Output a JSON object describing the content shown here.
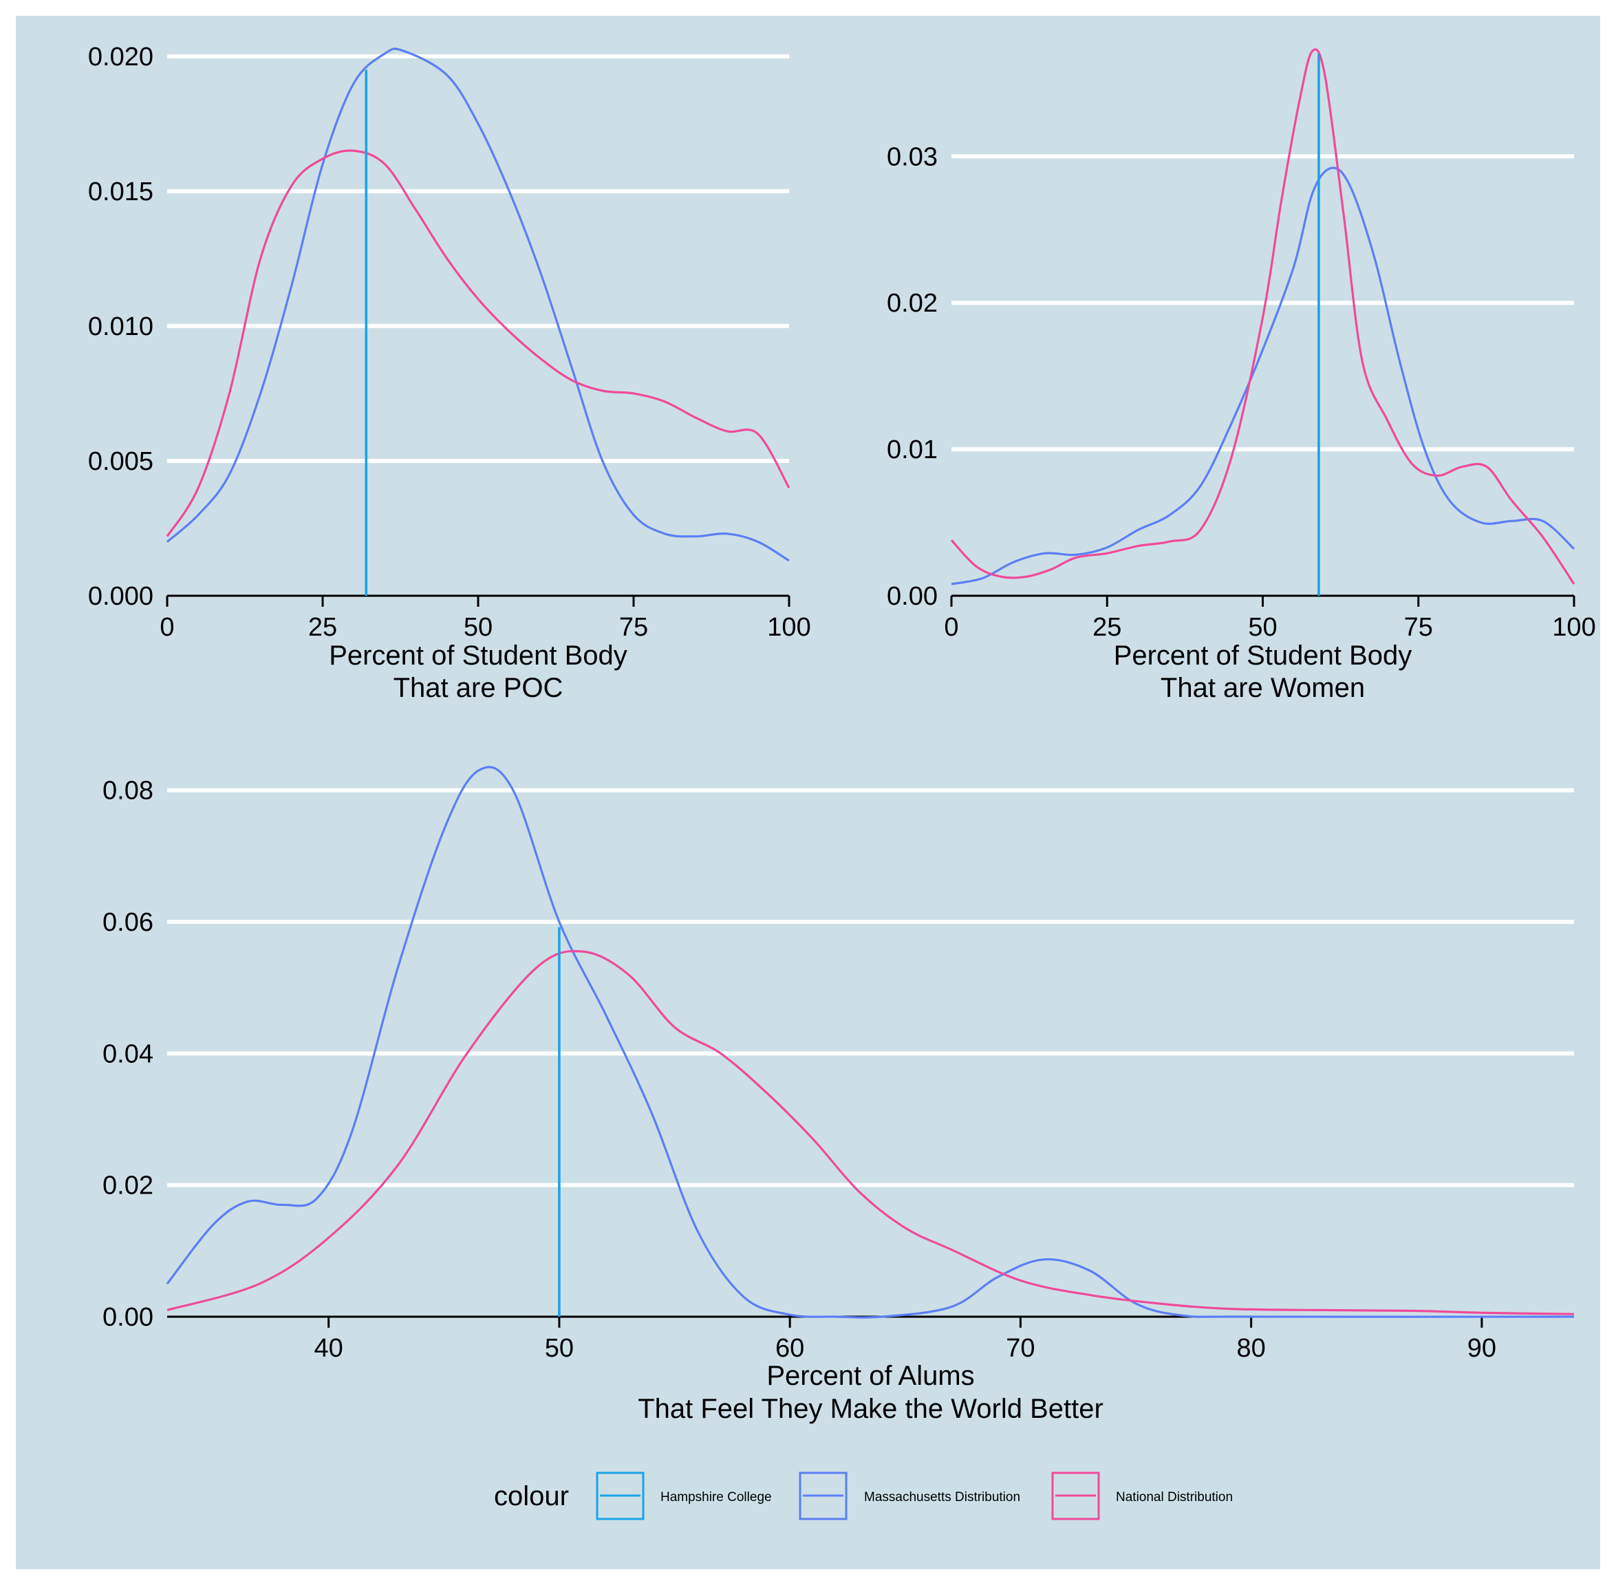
{
  "figure": {
    "background": "#cddfe6",
    "grid_color": "#ffffff",
    "axis_color": "#000000",
    "text_color": "#000000"
  },
  "chart_data": [
    {
      "type": "line",
      "title": "",
      "xlabel_lines": [
        "Percent of Student Body",
        "That are POC"
      ],
      "ylabel": "",
      "xlim": [
        0,
        100
      ],
      "ylim": [
        0,
        0.0202
      ],
      "x_ticks": [
        0,
        25,
        50,
        75,
        100
      ],
      "x_tick_labels": [
        "0",
        "25",
        "50",
        "75",
        "100"
      ],
      "y_ticks": [
        0,
        0.005,
        0.01,
        0.015,
        0.02
      ],
      "y_tick_labels": [
        "0.000",
        "0.005",
        "0.010",
        "0.015",
        "0.020"
      ],
      "grid": "horizontal-major",
      "series": [
        {
          "name": "Massachusetts Distribution",
          "color": "#5a7ff5",
          "points": [
            [
              0,
              0.002
            ],
            [
              5,
              0.003
            ],
            [
              10,
              0.0045
            ],
            [
              15,
              0.0075
            ],
            [
              20,
              0.0115
            ],
            [
              25,
              0.016
            ],
            [
              30,
              0.019
            ],
            [
              35,
              0.0201
            ],
            [
              38,
              0.0202
            ],
            [
              45,
              0.0193
            ],
            [
              50,
              0.0175
            ],
            [
              55,
              0.015
            ],
            [
              60,
              0.012
            ],
            [
              65,
              0.0085
            ],
            [
              70,
              0.005
            ],
            [
              75,
              0.003
            ],
            [
              80,
              0.0023
            ],
            [
              85,
              0.0022
            ],
            [
              90,
              0.0023
            ],
            [
              95,
              0.002
            ],
            [
              100,
              0.0013
            ]
          ]
        },
        {
          "name": "National Distribution",
          "color": "#ef4a9a",
          "points": [
            [
              0,
              0.0022
            ],
            [
              5,
              0.004
            ],
            [
              10,
              0.0075
            ],
            [
              15,
              0.0125
            ],
            [
              20,
              0.0152
            ],
            [
              25,
              0.0162
            ],
            [
              30,
              0.0165
            ],
            [
              35,
              0.016
            ],
            [
              40,
              0.0143
            ],
            [
              45,
              0.0125
            ],
            [
              50,
              0.011
            ],
            [
              55,
              0.0098
            ],
            [
              60,
              0.0088
            ],
            [
              65,
              0.008
            ],
            [
              70,
              0.0076
            ],
            [
              75,
              0.0075
            ],
            [
              80,
              0.0072
            ],
            [
              85,
              0.0066
            ],
            [
              90,
              0.0061
            ],
            [
              95,
              0.006
            ],
            [
              100,
              0.004
            ]
          ]
        }
      ],
      "vline": {
        "name": "Hampshire College",
        "color": "#1ca3e6",
        "x": 32,
        "y_top": 0.0195
      }
    },
    {
      "type": "line",
      "title": "",
      "xlabel_lines": [
        "Percent of Student Body",
        "That are Women"
      ],
      "ylabel": "",
      "xlim": [
        0,
        100
      ],
      "ylim": [
        0,
        0.0372
      ],
      "x_ticks": [
        0,
        25,
        50,
        75,
        100
      ],
      "x_tick_labels": [
        "0",
        "25",
        "50",
        "75",
        "100"
      ],
      "y_ticks": [
        0,
        0.01,
        0.02,
        0.03
      ],
      "y_tick_labels": [
        "0.00",
        "0.01",
        "0.02",
        "0.03"
      ],
      "grid": "horizontal-major",
      "series": [
        {
          "name": "Massachusetts Distribution",
          "color": "#5a7ff5",
          "points": [
            [
              0,
              0.0008
            ],
            [
              5,
              0.0012
            ],
            [
              10,
              0.0023
            ],
            [
              15,
              0.0029
            ],
            [
              20,
              0.0028
            ],
            [
              25,
              0.0033
            ],
            [
              30,
              0.0045
            ],
            [
              35,
              0.0055
            ],
            [
              40,
              0.0075
            ],
            [
              45,
              0.0118
            ],
            [
              50,
              0.0168
            ],
            [
              55,
              0.0225
            ],
            [
              58,
              0.0275
            ],
            [
              61,
              0.0292
            ],
            [
              64,
              0.028
            ],
            [
              68,
              0.023
            ],
            [
              72,
              0.016
            ],
            [
              76,
              0.01
            ],
            [
              80,
              0.0065
            ],
            [
              85,
              0.005
            ],
            [
              90,
              0.0051
            ],
            [
              95,
              0.0051
            ],
            [
              100,
              0.0032
            ]
          ]
        },
        {
          "name": "National Distribution",
          "color": "#ef4a9a",
          "points": [
            [
              0,
              0.0038
            ],
            [
              4,
              0.002
            ],
            [
              8,
              0.0013
            ],
            [
              12,
              0.0013
            ],
            [
              16,
              0.0018
            ],
            [
              20,
              0.0026
            ],
            [
              25,
              0.0029
            ],
            [
              30,
              0.0034
            ],
            [
              35,
              0.0037
            ],
            [
              40,
              0.0045
            ],
            [
              45,
              0.0095
            ],
            [
              50,
              0.019
            ],
            [
              53,
              0.027
            ],
            [
              56,
              0.034
            ],
            [
              58,
              0.0372
            ],
            [
              60,
              0.0355
            ],
            [
              63,
              0.026
            ],
            [
              66,
              0.016
            ],
            [
              70,
              0.012
            ],
            [
              74,
              0.009
            ],
            [
              78,
              0.0082
            ],
            [
              82,
              0.0088
            ],
            [
              86,
              0.0088
            ],
            [
              90,
              0.0065
            ],
            [
              95,
              0.004
            ],
            [
              100,
              0.0008
            ]
          ]
        }
      ],
      "vline": {
        "name": "Hampshire College",
        "color": "#1ca3e6",
        "x": 59,
        "y_top": 0.037
      }
    },
    {
      "type": "line",
      "title": "",
      "xlabel_lines": [
        "Percent of Alums",
        "That Feel They Make the World Better"
      ],
      "ylabel": "",
      "xlim": [
        33,
        94
      ],
      "ylim": [
        0,
        0.083
      ],
      "x_ticks": [
        40,
        50,
        60,
        70,
        80,
        90
      ],
      "x_tick_labels": [
        "40",
        "50",
        "60",
        "70",
        "80",
        "90"
      ],
      "y_ticks": [
        0,
        0.02,
        0.04,
        0.06,
        0.08
      ],
      "y_tick_labels": [
        "0.00",
        "0.02",
        "0.04",
        "0.06",
        "0.08"
      ],
      "grid": "horizontal-major",
      "series": [
        {
          "name": "Massachusetts Distribution",
          "color": "#5a7ff5",
          "points": [
            [
              33,
              0.005
            ],
            [
              35,
              0.014
            ],
            [
              36.5,
              0.0175
            ],
            [
              38,
              0.017
            ],
            [
              39.5,
              0.018
            ],
            [
              41,
              0.028
            ],
            [
              43,
              0.053
            ],
            [
              45,
              0.074
            ],
            [
              46.5,
              0.083
            ],
            [
              48,
              0.08
            ],
            [
              50,
              0.06
            ],
            [
              52,
              0.046
            ],
            [
              54,
              0.031
            ],
            [
              56,
              0.013
            ],
            [
              58,
              0.003
            ],
            [
              60,
              0.0003
            ],
            [
              62,
              0.0
            ],
            [
              64,
              0.0
            ],
            [
              67,
              0.0015
            ],
            [
              69,
              0.006
            ],
            [
              71,
              0.0087
            ],
            [
              73,
              0.007
            ],
            [
              75,
              0.002
            ],
            [
              77,
              0.0002
            ],
            [
              80,
              0.0
            ],
            [
              94,
              0.0
            ]
          ]
        },
        {
          "name": "National Distribution",
          "color": "#ef4a9a",
          "points": [
            [
              33,
              0.001
            ],
            [
              37,
              0.005
            ],
            [
              40,
              0.012
            ],
            [
              43,
              0.023
            ],
            [
              46,
              0.04
            ],
            [
              49,
              0.053
            ],
            [
              51,
              0.0555
            ],
            [
              53,
              0.052
            ],
            [
              55,
              0.044
            ],
            [
              57,
              0.04
            ],
            [
              59,
              0.034
            ],
            [
              61,
              0.027
            ],
            [
              63,
              0.019
            ],
            [
              65,
              0.0135
            ],
            [
              67,
              0.0102
            ],
            [
              70,
              0.0055
            ],
            [
              73,
              0.0033
            ],
            [
              76,
              0.002
            ],
            [
              79,
              0.0012
            ],
            [
              83,
              0.001
            ],
            [
              87,
              0.0009
            ],
            [
              90,
              0.0006
            ],
            [
              94,
              0.0004
            ]
          ]
        }
      ],
      "vline": {
        "name": "Hampshire College",
        "color": "#1ca3e6",
        "x": 50,
        "y_top": 0.0592
      }
    }
  ],
  "legend": {
    "title": "colour",
    "position": "bottom",
    "items": [
      {
        "label": "Hampshire College",
        "color": "#1ca3e6"
      },
      {
        "label": "Massachusetts Distribution",
        "color": "#5a7ff5"
      },
      {
        "label": "National Distribution",
        "color": "#ef4a9a"
      }
    ]
  }
}
